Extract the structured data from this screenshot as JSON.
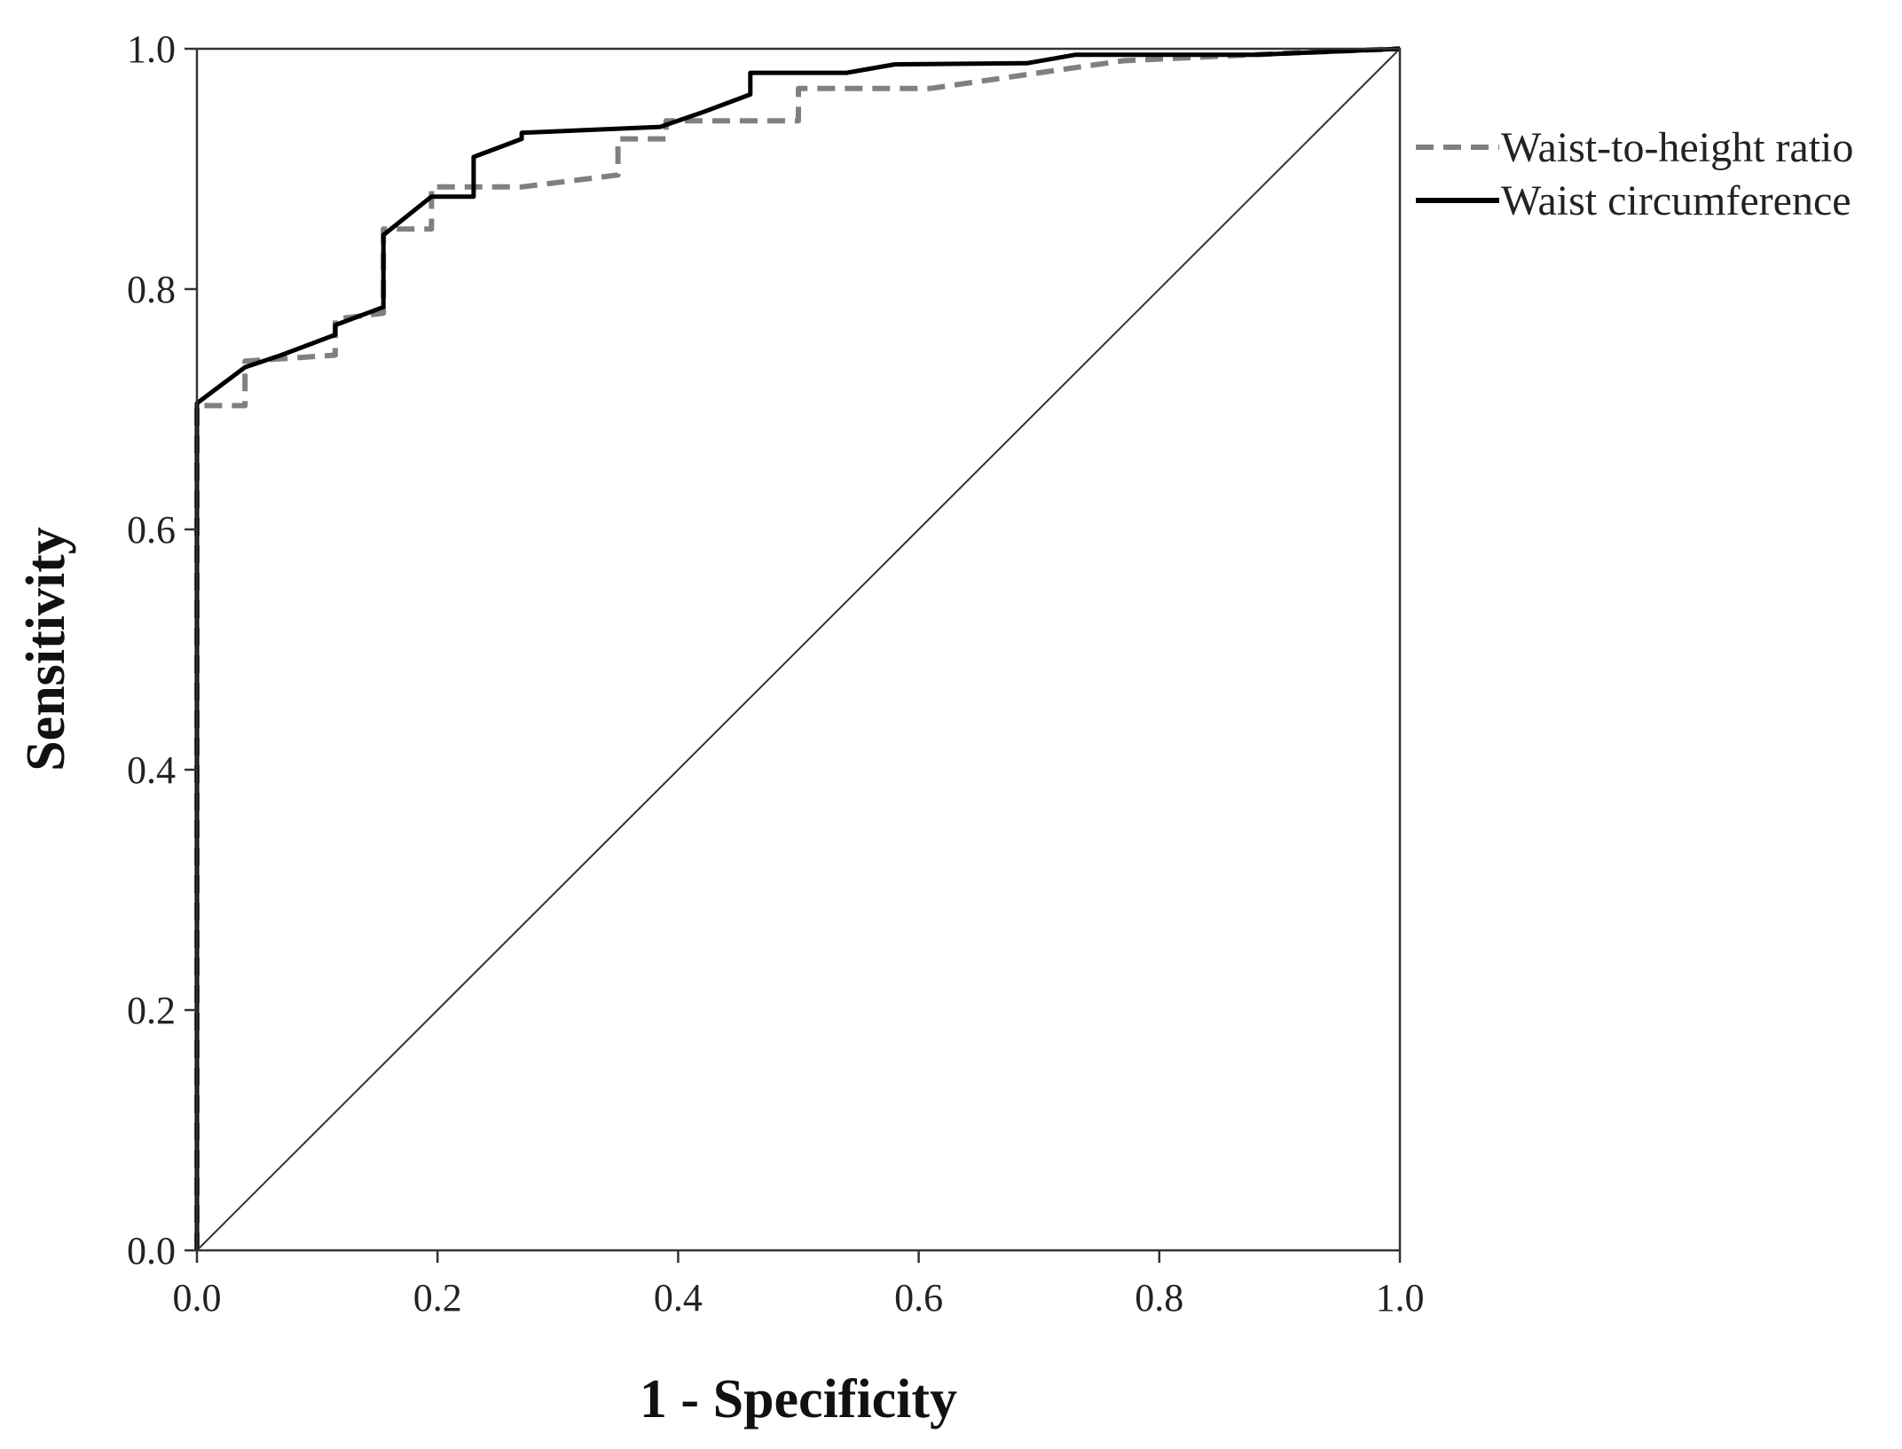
{
  "chart_data": {
    "type": "line",
    "title": "",
    "xlabel": "1 - Specificity",
    "ylabel": "Sensitivity",
    "xlim": [
      0,
      1
    ],
    "ylim": [
      0,
      1
    ],
    "xticks": [
      "0.0",
      "0.2",
      "0.4",
      "0.6",
      "0.8",
      "1.0"
    ],
    "yticks": [
      "0.0",
      "0.2",
      "0.4",
      "0.6",
      "0.8",
      "1.0"
    ],
    "legend_position": "right",
    "reference_line": {
      "name": "Reference line",
      "x": [
        0,
        1
      ],
      "y": [
        0,
        1
      ],
      "color": "#333333"
    },
    "series": [
      {
        "name": "Waist-to-height ratio",
        "style": "dashed",
        "color": "#808080",
        "x": [
          0,
          0,
          0.04,
          0.04,
          0.115,
          0.115,
          0.155,
          0.155,
          0.195,
          0.195,
          0.27,
          0.35,
          0.35,
          0.39,
          0.39,
          0.5,
          0.5,
          0.61,
          0.7,
          0.77,
          0.92,
          1.0
        ],
        "y": [
          0,
          0.703,
          0.703,
          0.74,
          0.745,
          0.775,
          0.78,
          0.85,
          0.85,
          0.885,
          0.885,
          0.895,
          0.925,
          0.925,
          0.94,
          0.94,
          0.967,
          0.967,
          0.98,
          0.99,
          0.997,
          1.0
        ]
      },
      {
        "name": "Waist circumference",
        "style": "solid",
        "color": "#000000",
        "x": [
          0,
          0,
          0.04,
          0.07,
          0.115,
          0.115,
          0.155,
          0.155,
          0.195,
          0.23,
          0.23,
          0.27,
          0.27,
          0.385,
          0.42,
          0.46,
          0.46,
          0.54,
          0.58,
          0.69,
          0.73,
          0.88,
          1.0
        ],
        "y": [
          0,
          0.705,
          0.735,
          0.745,
          0.762,
          0.77,
          0.785,
          0.845,
          0.877,
          0.877,
          0.91,
          0.925,
          0.93,
          0.935,
          0.947,
          0.962,
          0.98,
          0.98,
          0.987,
          0.988,
          0.995,
          0.995,
          1.0
        ]
      }
    ]
  }
}
